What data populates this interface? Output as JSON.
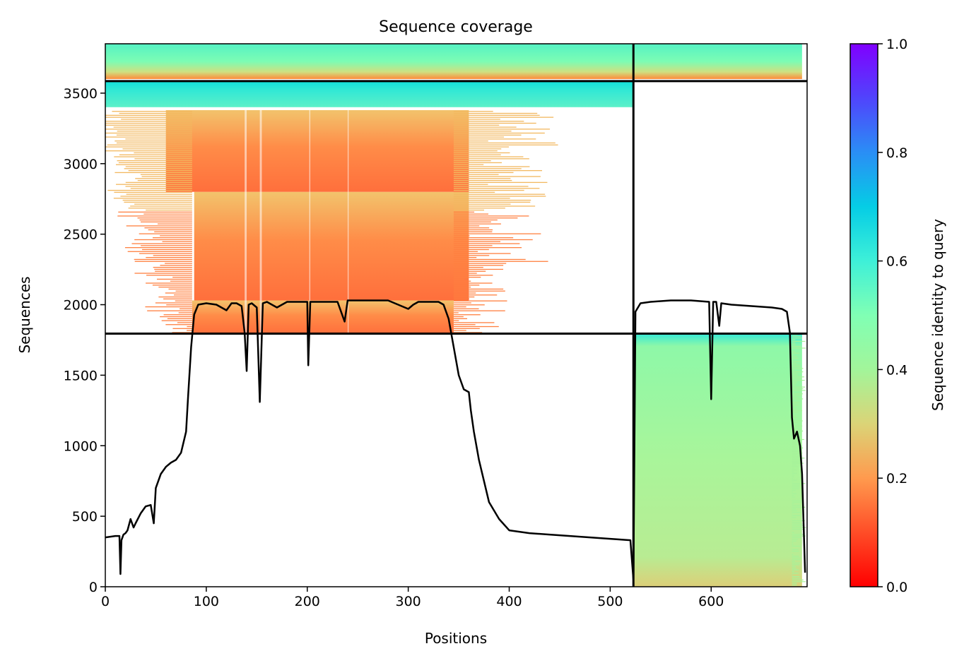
{
  "chart_data": {
    "type": "heatmap",
    "title": "Sequence coverage",
    "xlabel": "Positions",
    "ylabel": "Sequences",
    "xlim": [
      0,
      695
    ],
    "ylim": [
      0,
      3850
    ],
    "xticks": [
      0,
      100,
      200,
      300,
      400,
      500,
      600
    ],
    "yticks": [
      0,
      500,
      1000,
      1500,
      2000,
      2500,
      3000,
      3500
    ],
    "separators": {
      "vertical_x": [
        523
      ],
      "horizontal_y": [
        1795,
        3585
      ]
    },
    "colorbar": {
      "label": "Sequence identity to query",
      "range": [
        0,
        1
      ],
      "ticks": [
        "0.0",
        "0.2",
        "0.4",
        "0.6",
        "0.8",
        "1.0"
      ],
      "colormap": "rainbow"
    },
    "coverage_blocks": [
      {
        "x0": 86,
        "x1": 345,
        "y0": 1795,
        "y1": 2030,
        "identity": 0.14
      },
      {
        "x0": 88,
        "x1": 360,
        "y0": 2030,
        "y1": 2800,
        "identity": 0.16
      },
      {
        "x0": 60,
        "x1": 360,
        "y0": 2800,
        "y1": 3380,
        "identity": 0.24
      },
      {
        "x0": 0,
        "x1": 523,
        "y0": 3400,
        "y1": 3585,
        "identity": 0.6
      },
      {
        "x0": 0,
        "x1": 523,
        "y0": 3600,
        "y1": 3850,
        "identity": 0.55
      },
      {
        "x0": 523,
        "x1": 690,
        "y0": 3600,
        "y1": 3850,
        "identity": 0.56
      },
      {
        "x0": 523,
        "x1": 690,
        "y0": 0,
        "y1": 1795,
        "identity": 0.42
      }
    ],
    "series": [
      {
        "x": [
          0,
          10,
          14,
          15,
          16,
          18,
          20,
          22,
          25,
          28,
          30,
          35,
          40,
          45,
          48,
          50,
          55,
          60,
          65,
          70,
          75,
          80,
          82,
          85,
          88,
          92,
          100,
          110,
          120,
          125,
          130,
          135,
          138,
          140,
          142,
          145,
          150,
          153,
          156,
          160,
          170,
          180,
          200,
          201,
          203,
          210,
          230,
          237,
          240,
          260,
          280,
          300,
          305,
          310,
          320,
          330,
          335,
          340,
          345,
          350,
          355,
          360,
          362,
          365,
          370,
          375,
          380,
          390,
          400,
          420,
          440,
          460,
          480,
          500,
          520,
          523,
          525,
          530,
          540,
          560,
          580,
          598,
          600,
          602,
          605,
          608,
          610,
          620,
          640,
          660,
          670,
          675,
          678,
          680,
          682,
          685,
          688,
          690,
          693
        ],
        "y": [
          350,
          360,
          360,
          90,
          330,
          370,
          380,
          400,
          480,
          420,
          450,
          520,
          570,
          580,
          450,
          700,
          800,
          850,
          880,
          900,
          950,
          1100,
          1350,
          1700,
          1930,
          2000,
          2010,
          2000,
          1960,
          2010,
          2010,
          1990,
          1800,
          1530,
          2000,
          2010,
          1980,
          1310,
          2010,
          2020,
          1980,
          2020,
          2020,
          1570,
          2020,
          2020,
          2020,
          1880,
          2030,
          2030,
          2030,
          1970,
          2000,
          2020,
          2020,
          2020,
          2000,
          1900,
          1700,
          1500,
          1400,
          1380,
          1250,
          1100,
          900,
          750,
          600,
          480,
          400,
          380,
          370,
          360,
          350,
          340,
          330,
          50,
          1950,
          2010,
          2020,
          2030,
          2030,
          2020,
          1330,
          2020,
          2020,
          1850,
          2010,
          2000,
          1990,
          1980,
          1970,
          1950,
          1800,
          1200,
          1050,
          1100,
          1000,
          800,
          100
        ]
      }
    ]
  }
}
